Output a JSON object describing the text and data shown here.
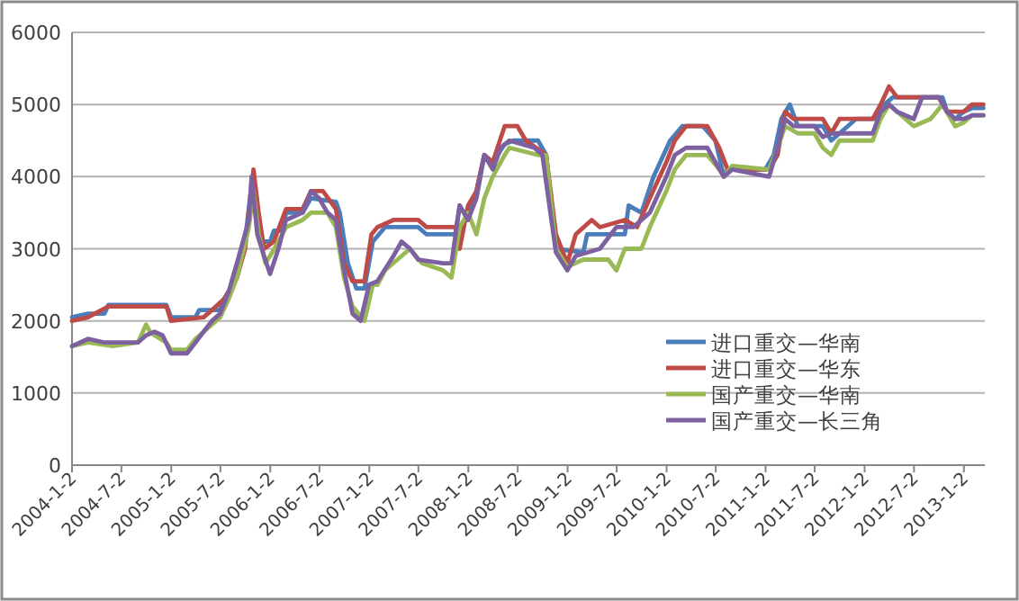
{
  "chart_data": {
    "type": "line",
    "grid": "y",
    "legend": "right",
    "xlim": [
      "2004-01-02",
      "2013-03-20"
    ],
    "ylim": [
      0,
      6000
    ],
    "yticks": [
      0,
      1000,
      2000,
      3000,
      4000,
      5000,
      6000
    ],
    "xticks": [
      {
        "value": "2004-01-02",
        "label": "2004-1-2"
      },
      {
        "value": "2004-07-02",
        "label": "2004-7-2"
      },
      {
        "value": "2005-01-02",
        "label": "2005-1-2"
      },
      {
        "value": "2005-07-02",
        "label": "2005-7-2"
      },
      {
        "value": "2006-01-02",
        "label": "2006-1-2"
      },
      {
        "value": "2006-07-02",
        "label": "2006-7-2"
      },
      {
        "value": "2007-01-02",
        "label": "2007-1-2"
      },
      {
        "value": "2007-07-02",
        "label": "2007-7-2"
      },
      {
        "value": "2008-01-02",
        "label": "2008-1-2"
      },
      {
        "value": "2008-07-02",
        "label": "2008-7-2"
      },
      {
        "value": "2009-01-02",
        "label": "2009-1-2"
      },
      {
        "value": "2009-07-02",
        "label": "2009-7-2"
      },
      {
        "value": "2010-01-02",
        "label": "2010-1-2"
      },
      {
        "value": "2010-07-02",
        "label": "2010-7-2"
      },
      {
        "value": "2011-01-02",
        "label": "2011-1-2"
      },
      {
        "value": "2011-07-02",
        "label": "2011-7-2"
      },
      {
        "value": "2012-01-02",
        "label": "2012-1-2"
      },
      {
        "value": "2012-07-02",
        "label": "2012-7-2"
      },
      {
        "value": "2013-01-02",
        "label": "2013-1-2"
      }
    ],
    "series": [
      {
        "name": "进口重交—华南",
        "color": "#4a7ebb",
        "x": [
          "2004-01-02",
          "2004-03-01",
          "2004-05-01",
          "2004-05-15",
          "2004-12-15",
          "2005-01-01",
          "2005-04-01",
          "2005-04-15",
          "2005-07-01",
          "2005-07-15",
          "2005-09-01",
          "2005-10-01",
          "2005-10-25",
          "2005-11-10",
          "2005-12-01",
          "2006-01-01",
          "2006-01-15",
          "2006-02-15",
          "2006-03-01",
          "2006-05-01",
          "2006-06-01",
          "2006-09-01",
          "2006-09-15",
          "2006-10-15",
          "2006-11-15",
          "2006-12-15",
          "2007-01-15",
          "2007-03-01",
          "2007-07-01",
          "2007-08-01",
          "2007-11-15",
          "2007-12-01",
          "2008-01-01",
          "2008-02-01",
          "2008-03-01",
          "2008-04-01",
          "2008-05-15",
          "2008-06-15",
          "2008-09-15",
          "2008-10-15",
          "2008-11-20",
          "2009-03-01",
          "2009-03-15",
          "2009-08-01",
          "2009-08-15",
          "2009-10-01",
          "2009-11-15",
          "2010-01-15",
          "2010-03-01",
          "2010-05-15",
          "2010-07-01",
          "2010-08-01",
          "2010-08-15",
          "2011-01-01",
          "2011-02-01",
          "2011-03-01",
          "2011-04-01",
          "2011-05-01",
          "2011-08-01",
          "2011-09-01",
          "2011-11-01",
          "2011-12-01",
          "2012-02-15",
          "2012-03-15",
          "2012-04-15",
          "2012-07-15",
          "2012-10-15",
          "2012-11-01",
          "2012-12-01",
          "2013-01-01",
          "2013-02-01",
          "2013-03-15"
        ],
        "values": [
          2050,
          2100,
          2100,
          2220,
          2220,
          2050,
          2050,
          2150,
          2150,
          2300,
          2600,
          3100,
          3900,
          3700,
          3100,
          3100,
          3250,
          3250,
          3500,
          3500,
          3700,
          3650,
          3500,
          2800,
          2450,
          2450,
          3100,
          3300,
          3300,
          3200,
          3200,
          3600,
          3400,
          3800,
          4300,
          4200,
          4450,
          4500,
          4500,
          4300,
          3000,
          2950,
          3200,
          3200,
          3600,
          3500,
          4000,
          4500,
          4700,
          4700,
          4500,
          4000,
          4100,
          4100,
          4300,
          4800,
          5000,
          4700,
          4700,
          4500,
          4700,
          4800,
          4800,
          5000,
          5100,
          5100,
          5100,
          4900,
          4800,
          4900,
          4950,
          4950
        ]
      },
      {
        "name": "进口重交—华东",
        "color": "#be4b48",
        "x": [
          "2004-01-02",
          "2004-03-01",
          "2004-05-15",
          "2004-12-15",
          "2005-01-01",
          "2005-05-01",
          "2005-06-01",
          "2005-07-15",
          "2005-09-01",
          "2005-10-01",
          "2005-11-01",
          "2005-11-20",
          "2005-12-10",
          "2006-01-15",
          "2006-03-01",
          "2006-05-01",
          "2006-06-01",
          "2006-07-15",
          "2006-09-01",
          "2006-10-01",
          "2006-11-01",
          "2006-12-15",
          "2007-01-10",
          "2007-02-01",
          "2007-04-01",
          "2007-07-01",
          "2007-08-01",
          "2007-11-15",
          "2007-12-01",
          "2008-01-01",
          "2008-02-01",
          "2008-03-01",
          "2008-04-01",
          "2008-05-15",
          "2008-07-01",
          "2008-08-01",
          "2008-10-15",
          "2008-11-20",
          "2009-01-01",
          "2009-02-01",
          "2009-04-01",
          "2009-05-01",
          "2009-08-01",
          "2009-09-15",
          "2009-11-01",
          "2010-01-01",
          "2010-02-01",
          "2010-03-15",
          "2010-06-01",
          "2010-07-15",
          "2010-08-15",
          "2011-01-15",
          "2011-02-15",
          "2011-03-15",
          "2011-04-15",
          "2011-08-01",
          "2011-09-01",
          "2011-10-01",
          "2012-02-01",
          "2012-03-01",
          "2012-04-01",
          "2012-05-01",
          "2012-10-01",
          "2012-11-01",
          "2013-01-01",
          "2013-02-01",
          "2013-03-15"
        ],
        "values": [
          2000,
          2050,
          2200,
          2200,
          2000,
          2050,
          2150,
          2300,
          2600,
          3000,
          4100,
          3500,
          3000,
          3100,
          3550,
          3550,
          3800,
          3800,
          3550,
          2800,
          2550,
          2550,
          3200,
          3300,
          3400,
          3400,
          3300,
          3300,
          3000,
          3600,
          3800,
          4300,
          4200,
          4700,
          4700,
          4500,
          4300,
          3200,
          2800,
          3200,
          3400,
          3300,
          3400,
          3300,
          3700,
          4200,
          4500,
          4700,
          4700,
          4400,
          4100,
          4100,
          4300,
          4900,
          4800,
          4800,
          4600,
          4800,
          4800,
          5000,
          5250,
          5100,
          5100,
          4900,
          4900,
          5000,
          5000
        ]
      },
      {
        "name": "国产重交—华南",
        "color": "#98b954",
        "x": [
          "2004-01-02",
          "2004-03-01",
          "2004-06-01",
          "2004-09-01",
          "2004-10-01",
          "2004-10-15",
          "2004-11-01",
          "2004-12-15",
          "2005-01-01",
          "2005-03-01",
          "2005-04-01",
          "2005-05-01",
          "2005-06-01",
          "2005-07-01",
          "2005-08-01",
          "2005-09-01",
          "2005-10-15",
          "2005-11-01",
          "2005-11-20",
          "2005-12-15",
          "2006-01-01",
          "2006-02-01",
          "2006-03-01",
          "2006-05-01",
          "2006-06-01",
          "2006-08-01",
          "2006-09-01",
          "2006-10-01",
          "2006-11-01",
          "2006-12-15",
          "2007-01-15",
          "2007-02-01",
          "2007-03-01",
          "2007-05-01",
          "2007-06-01",
          "2007-07-15",
          "2007-10-01",
          "2007-11-01",
          "2007-12-01",
          "2008-01-01",
          "2008-02-01",
          "2008-03-01",
          "2008-04-01",
          "2008-05-15",
          "2008-06-01",
          "2008-09-15",
          "2008-10-15",
          "2008-11-20",
          "2009-01-01",
          "2009-03-01",
          "2009-06-01",
          "2009-07-01",
          "2009-08-01",
          "2009-10-01",
          "2009-11-01",
          "2010-01-01",
          "2010-02-01",
          "2010-03-15",
          "2010-06-01",
          "2010-07-15",
          "2010-08-01",
          "2010-09-01",
          "2011-01-15",
          "2011-02-15",
          "2011-03-15",
          "2011-05-01",
          "2011-07-01",
          "2011-08-01",
          "2011-09-01",
          "2011-10-01",
          "2012-02-01",
          "2012-03-01",
          "2012-04-01",
          "2012-05-01",
          "2012-07-01",
          "2012-09-01",
          "2012-10-15",
          "2012-11-15",
          "2012-12-01",
          "2013-01-01",
          "2013-02-01",
          "2013-03-15"
        ],
        "values": [
          1650,
          1700,
          1650,
          1700,
          1950,
          1850,
          1800,
          1700,
          1600,
          1600,
          1750,
          1850,
          1950,
          2050,
          2300,
          2600,
          3300,
          3800,
          3200,
          2800,
          2900,
          3100,
          3300,
          3400,
          3500,
          3500,
          3300,
          2600,
          2200,
          2000,
          2500,
          2500,
          2700,
          2900,
          3000,
          2800,
          2700,
          2600,
          3300,
          3500,
          3200,
          3700,
          4000,
          4300,
          4400,
          4300,
          4300,
          3000,
          2750,
          2850,
          2850,
          2700,
          3000,
          3000,
          3300,
          3800,
          4100,
          4300,
          4300,
          4100,
          4000,
          4150,
          4100,
          4400,
          4700,
          4600,
          4600,
          4400,
          4300,
          4500,
          4500,
          4800,
          5000,
          4900,
          4700,
          4800,
          5000,
          4800,
          4700,
          4750,
          4850,
          4850
        ]
      },
      {
        "name": "国产重交—长三角",
        "color": "#7d60a0",
        "x": [
          "2004-01-02",
          "2004-03-01",
          "2004-05-01",
          "2004-09-01",
          "2004-10-01",
          "2004-11-01",
          "2004-12-01",
          "2005-01-01",
          "2005-03-01",
          "2005-04-01",
          "2005-05-01",
          "2005-06-01",
          "2005-07-01",
          "2005-08-01",
          "2005-09-01",
          "2005-10-15",
          "2005-10-25",
          "2005-11-15",
          "2005-12-10",
          "2006-01-01",
          "2006-02-01",
          "2006-03-01",
          "2006-05-01",
          "2006-06-01",
          "2006-07-01",
          "2006-08-01",
          "2006-09-01",
          "2006-10-01",
          "2006-11-01",
          "2006-12-01",
          "2007-01-01",
          "2007-02-01",
          "2007-04-01",
          "2007-05-01",
          "2007-06-01",
          "2007-07-01",
          "2007-10-01",
          "2007-11-01",
          "2007-12-01",
          "2008-01-01",
          "2008-02-01",
          "2008-03-01",
          "2008-04-01",
          "2008-05-01",
          "2008-06-01",
          "2008-09-01",
          "2008-10-01",
          "2008-11-20",
          "2009-01-01",
          "2009-02-01",
          "2009-05-01",
          "2009-07-01",
          "2009-09-01",
          "2009-11-01",
          "2010-01-01",
          "2010-02-01",
          "2010-03-15",
          "2010-06-01",
          "2010-07-01",
          "2010-08-01",
          "2010-09-01",
          "2011-01-15",
          "2011-02-15",
          "2011-03-15",
          "2011-04-15",
          "2011-07-01",
          "2011-08-01",
          "2011-09-01",
          "2012-02-01",
          "2012-03-01",
          "2012-04-01",
          "2012-05-01",
          "2012-07-01",
          "2012-08-01",
          "2012-10-01",
          "2012-11-01",
          "2012-12-01",
          "2013-01-01",
          "2013-02-01",
          "2013-03-15"
        ],
        "values": [
          1650,
          1750,
          1700,
          1700,
          1800,
          1850,
          1800,
          1550,
          1550,
          1700,
          1850,
          2000,
          2100,
          2400,
          2800,
          3400,
          4000,
          3200,
          2900,
          2650,
          3000,
          3400,
          3500,
          3800,
          3700,
          3500,
          3400,
          2700,
          2100,
          2000,
          2500,
          2550,
          2900,
          3100,
          3000,
          2850,
          2800,
          2800,
          3600,
          3400,
          3700,
          4300,
          4100,
          4400,
          4500,
          4400,
          4300,
          2950,
          2700,
          2900,
          3000,
          3300,
          3300,
          3500,
          4000,
          4300,
          4400,
          4400,
          4200,
          4000,
          4100,
          4000,
          4400,
          4800,
          4700,
          4700,
          4550,
          4600,
          4600,
          4900,
          5000,
          4900,
          4800,
          5100,
          5100,
          4900,
          4800,
          4800,
          4850,
          4850
        ]
      }
    ]
  }
}
